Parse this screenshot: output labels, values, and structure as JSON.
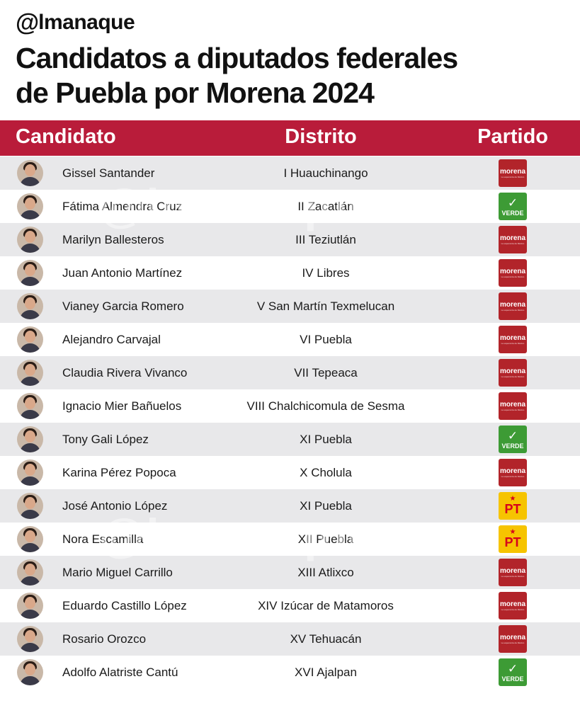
{
  "brand": {
    "at": "@",
    "name": "lmanaque",
    "watermark": "@lmanaque"
  },
  "title_lines": [
    "Candidatos a diputados federales",
    "de Puebla por Morena 2024"
  ],
  "table": {
    "headers": {
      "candidate": "Candidato",
      "district": "Distrito",
      "party": "Partido"
    },
    "rows": [
      {
        "name": "Gissel Santander",
        "district": "I Huauchinango",
        "party": "morena"
      },
      {
        "name": "Fátima Almendra Cruz",
        "district": "II Zacatlán",
        "party": "verde"
      },
      {
        "name": "Marilyn Ballesteros",
        "district": "III Teziutlán",
        "party": "morena"
      },
      {
        "name": "Juan Antonio Martínez",
        "district": "IV Libres",
        "party": "morena"
      },
      {
        "name": "Vianey Garcia Romero",
        "district": "V San Martín Texmelucan",
        "party": "morena"
      },
      {
        "name": "Alejandro Carvajal",
        "district": "VI Puebla",
        "party": "morena"
      },
      {
        "name": "Claudia Rivera Vivanco",
        "district": "VII Tepeaca",
        "party": "morena"
      },
      {
        "name": "Ignacio Mier Bañuelos",
        "district": "VIII Chalchicomula de Sesma",
        "party": "morena"
      },
      {
        "name": "Tony Gali López",
        "district": "XI Puebla",
        "party": "verde"
      },
      {
        "name": "Karina Pérez Popoca",
        "district": "X Cholula",
        "party": "morena"
      },
      {
        "name": "José Antonio López",
        "district": "XI Puebla",
        "party": "pt"
      },
      {
        "name": "Nora Escamilla",
        "district": "XII Puebla",
        "party": "pt"
      },
      {
        "name": "Mario Miguel Carrillo",
        "district": "XIII Atlixco",
        "party": "morena"
      },
      {
        "name": "Eduardo Castillo López",
        "district": "XIV Izúcar de Matamoros",
        "party": "morena"
      },
      {
        "name": "Rosario Orozco",
        "district": "XV Tehuacán",
        "party": "morena"
      },
      {
        "name": "Adolfo Alatriste Cantú",
        "district": "XVI Ajalpan",
        "party": "verde"
      }
    ]
  },
  "party_logos": {
    "morena": {
      "label": "morena",
      "tagline": "La esperanza de México",
      "color": "#b2242a"
    },
    "verde": {
      "label": "VERDE",
      "color": "#3d9b35"
    },
    "pt": {
      "label": "PT",
      "color": "#f6c400"
    }
  },
  "colors": {
    "header_bg": "#b91c3a",
    "stripe": "#e8e8ea"
  }
}
